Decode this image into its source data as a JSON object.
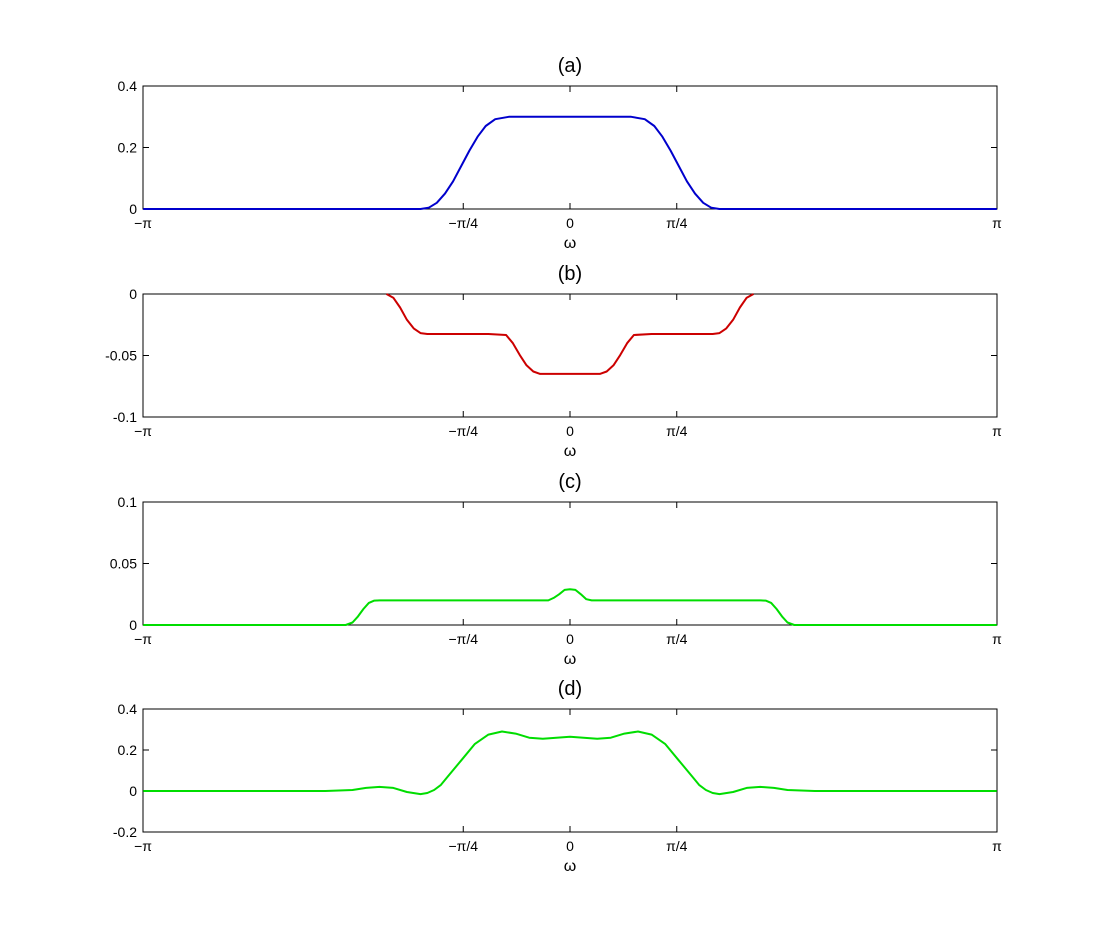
{
  "figure": {
    "xtick_labels": [
      "−π",
      "−π/4",
      "0",
      "π/4",
      "π"
    ],
    "xtick_values": [
      -3.14159,
      -0.7854,
      0,
      0.7854,
      3.14159
    ]
  },
  "chart_data": [
    {
      "type": "line",
      "title": "(a)",
      "xlabel": "ω",
      "ylabel": "",
      "xlim": [
        -3.14159,
        3.14159
      ],
      "ylim": [
        0,
        0.4
      ],
      "yticks": [
        0,
        0.2,
        0.4
      ],
      "ytick_labels": [
        "0",
        "0.2",
        "0.4"
      ],
      "grid": false,
      "color": "#0000cc",
      "series": [
        {
          "x": [
            -3.14,
            -1.1,
            -1.04,
            -0.98,
            -0.92,
            -0.86,
            -0.8,
            -0.74,
            -0.68,
            -0.62,
            -0.55,
            -0.45,
            -0.3,
            0,
            0.3,
            0.45,
            0.55,
            0.62,
            0.68,
            0.74,
            0.8,
            0.86,
            0.92,
            0.98,
            1.04,
            1.1,
            3.14
          ],
          "y": [
            0,
            0,
            0.004,
            0.02,
            0.05,
            0.09,
            0.14,
            0.19,
            0.235,
            0.27,
            0.292,
            0.3,
            0.3,
            0.3,
            0.3,
            0.3,
            0.292,
            0.27,
            0.235,
            0.19,
            0.14,
            0.09,
            0.05,
            0.02,
            0.004,
            0,
            0
          ]
        }
      ]
    },
    {
      "type": "line",
      "title": "(b)",
      "xlabel": "ω",
      "ylabel": "",
      "xlim": [
        -3.14159,
        3.14159
      ],
      "ylim": [
        -0.1,
        0
      ],
      "yticks": [
        -0.1,
        -0.05,
        0
      ],
      "ytick_labels": [
        "-0.1",
        "-0.05",
        "0"
      ],
      "grid": false,
      "color": "#cc0000",
      "series": [
        {
          "x": [
            -1.35,
            -1.3,
            -1.25,
            -1.2,
            -1.15,
            -1.1,
            -1.05,
            -0.9,
            -0.6,
            -0.47,
            -0.42,
            -0.37,
            -0.32,
            -0.27,
            -0.22,
            -0.17,
            -0.1,
            0,
            0.1,
            0.17,
            0.22,
            0.27,
            0.32,
            0.37,
            0.42,
            0.47,
            0.6,
            0.9,
            1.05,
            1.1,
            1.15,
            1.2,
            1.25,
            1.3,
            1.35
          ],
          "y": [
            0,
            -0.003,
            -0.011,
            -0.021,
            -0.028,
            -0.0318,
            -0.0325,
            -0.0325,
            -0.0325,
            -0.0333,
            -0.04,
            -0.0495,
            -0.058,
            -0.063,
            -0.065,
            -0.065,
            -0.065,
            -0.065,
            -0.065,
            -0.065,
            -0.065,
            -0.063,
            -0.058,
            -0.0495,
            -0.04,
            -0.0333,
            -0.0325,
            -0.0325,
            -0.0325,
            -0.0318,
            -0.028,
            -0.021,
            -0.011,
            -0.003,
            0
          ]
        }
      ]
    },
    {
      "type": "line",
      "title": "(c)",
      "xlabel": "ω",
      "ylabel": "",
      "xlim": [
        -3.14159,
        3.14159
      ],
      "ylim": [
        0,
        0.1
      ],
      "yticks": [
        0,
        0.05,
        0.1
      ],
      "ytick_labels": [
        "0",
        "0.05",
        "0.1"
      ],
      "grid": false,
      "color": "#00dd00",
      "series": [
        {
          "x": [
            -3.14,
            -1.65,
            -1.6,
            -1.56,
            -1.52,
            -1.48,
            -1.44,
            -1.4,
            -1.3,
            -0.5,
            -0.16,
            -0.12,
            -0.08,
            -0.04,
            0,
            0.04,
            0.08,
            0.12,
            0.16,
            0.5,
            1.3,
            1.4,
            1.44,
            1.48,
            1.52,
            1.56,
            1.6,
            1.65,
            3.14
          ],
          "y": [
            0,
            0,
            0.002,
            0.007,
            0.013,
            0.018,
            0.0198,
            0.02,
            0.02,
            0.02,
            0.02,
            0.022,
            0.025,
            0.0285,
            0.029,
            0.0285,
            0.025,
            0.021,
            0.02,
            0.02,
            0.02,
            0.02,
            0.0198,
            0.018,
            0.013,
            0.007,
            0.002,
            0,
            0
          ]
        }
      ]
    },
    {
      "type": "line",
      "title": "(d)",
      "xlabel": "ω",
      "ylabel": "",
      "xlim": [
        -3.14159,
        3.14159
      ],
      "ylim": [
        -0.2,
        0.4
      ],
      "yticks": [
        -0.2,
        0,
        0.2,
        0.4
      ],
      "ytick_labels": [
        "-0.2",
        "0",
        "0.2",
        "0.4"
      ],
      "grid": false,
      "color": "#00dd00",
      "series": [
        {
          "x": [
            -3.14,
            -1.8,
            -1.6,
            -1.5,
            -1.4,
            -1.3,
            -1.2,
            -1.1,
            -1.05,
            -1.0,
            -0.95,
            -0.9,
            -0.8,
            -0.7,
            -0.6,
            -0.5,
            -0.4,
            -0.3,
            -0.2,
            -0.1,
            0,
            0.1,
            0.2,
            0.3,
            0.4,
            0.5,
            0.6,
            0.7,
            0.8,
            0.9,
            0.95,
            1.0,
            1.05,
            1.1,
            1.2,
            1.3,
            1.4,
            1.5,
            1.6,
            1.8,
            3.14
          ],
          "y": [
            0,
            0,
            0.005,
            0.015,
            0.02,
            0.015,
            -0.005,
            -0.015,
            -0.01,
            0.005,
            0.03,
            0.07,
            0.15,
            0.23,
            0.275,
            0.29,
            0.28,
            0.26,
            0.255,
            0.26,
            0.265,
            0.26,
            0.255,
            0.26,
            0.28,
            0.29,
            0.275,
            0.23,
            0.15,
            0.07,
            0.03,
            0.005,
            -0.01,
            -0.015,
            -0.005,
            0.015,
            0.02,
            0.015,
            0.005,
            0,
            0
          ]
        }
      ]
    }
  ]
}
